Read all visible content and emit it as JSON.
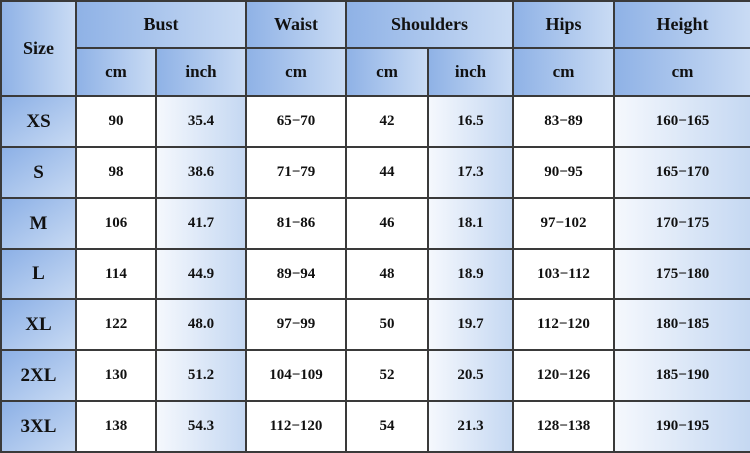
{
  "table": {
    "corner": "Size",
    "groups": [
      {
        "label": "Bust",
        "span": 2
      },
      {
        "label": "Waist",
        "span": 1
      },
      {
        "label": "Shoulders",
        "span": 2
      },
      {
        "label": "Hips",
        "span": 1
      },
      {
        "label": "Height",
        "span": 1
      }
    ],
    "units": [
      "cm",
      "inch",
      "cm",
      "cm",
      "inch",
      "cm",
      "cm"
    ],
    "rows": [
      {
        "size": "XS",
        "values": [
          "90",
          "35.4",
          "65−70",
          "42",
          "16.5",
          "83−89",
          "160−165"
        ]
      },
      {
        "size": "S",
        "values": [
          "98",
          "38.6",
          "71−79",
          "44",
          "17.3",
          "90−95",
          "165−170"
        ]
      },
      {
        "size": "M",
        "values": [
          "106",
          "41.7",
          "81−86",
          "46",
          "18.1",
          "97−102",
          "170−175"
        ]
      },
      {
        "size": "L",
        "values": [
          "114",
          "44.9",
          "89−94",
          "48",
          "18.9",
          "103−112",
          "175−180"
        ]
      },
      {
        "size": "XL",
        "values": [
          "122",
          "48.0",
          "97−99",
          "50",
          "19.7",
          "112−120",
          "180−185"
        ]
      },
      {
        "size": "2XL",
        "values": [
          "130",
          "51.2",
          "104−109",
          "52",
          "20.5",
          "120−126",
          "185−190"
        ]
      },
      {
        "size": "3XL",
        "values": [
          "138",
          "54.3",
          "112−120",
          "54",
          "21.3",
          "128−138",
          "190−195"
        ]
      }
    ]
  }
}
